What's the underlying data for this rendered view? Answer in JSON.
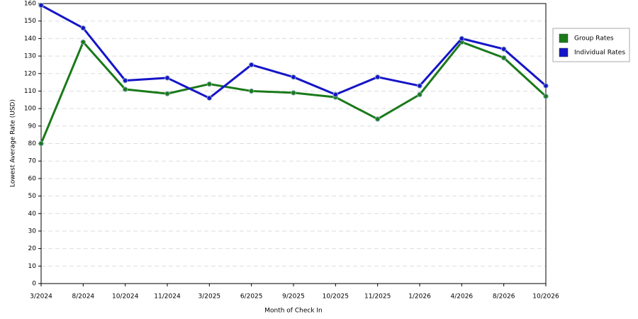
{
  "chart_data": {
    "type": "line",
    "x_label": "Month of Check In",
    "y_label": "Lowest Average Rate (USD)",
    "categories": [
      "3/2024",
      "8/2024",
      "10/2024",
      "11/2024",
      "3/2025",
      "6/2025",
      "9/2025",
      "10/2025",
      "11/2025",
      "1/2026",
      "4/2026",
      "8/2026",
      "10/2026"
    ],
    "series": [
      {
        "name": "Group Rates",
        "color": "#1a7a1a",
        "values": [
          80,
          138,
          111,
          108.5,
          114,
          110,
          109,
          106.5,
          94,
          108,
          138,
          129,
          107
        ]
      },
      {
        "name": "Individual Rates",
        "color": "#1515c8",
        "values": [
          159,
          146,
          116,
          117.5,
          106,
          125,
          118,
          108,
          118,
          113,
          140,
          134,
          113
        ]
      }
    ],
    "ylim": [
      0,
      160
    ],
    "yticks": [
      0,
      10,
      20,
      30,
      40,
      50,
      60,
      70,
      80,
      90,
      100,
      110,
      120,
      130,
      140,
      150,
      160
    ],
    "grid": true,
    "legend": "right"
  }
}
